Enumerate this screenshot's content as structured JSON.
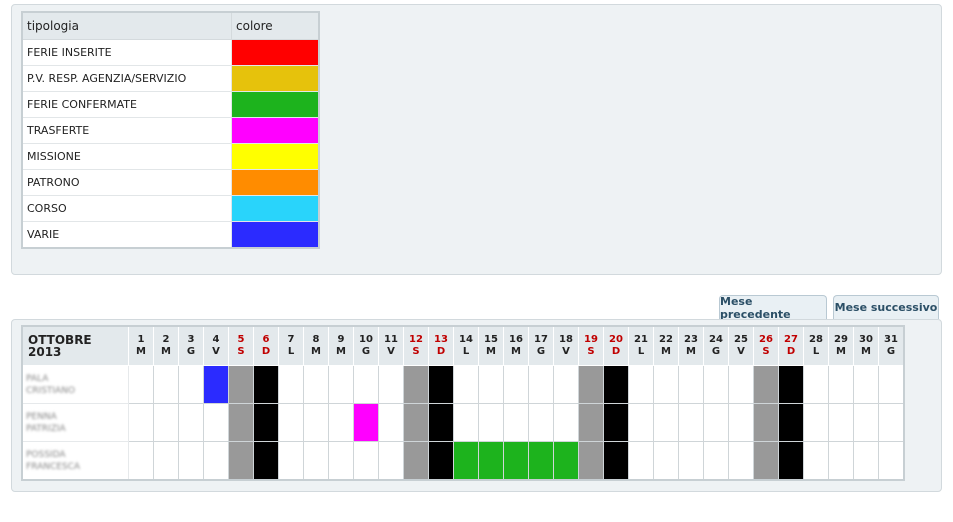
{
  "legend": {
    "headers": {
      "tipologia": "tipologia",
      "colore": "colore"
    },
    "rows": [
      {
        "label": "FERIE INSERITE",
        "color": "#ff0000"
      },
      {
        "label": "P.V. RESP. AGENZIA/SERVIZIO",
        "color": "#e6c20c"
      },
      {
        "label": "FERIE CONFERMATE",
        "color": "#1db31d"
      },
      {
        "label": "TRASFERTE",
        "color": "#ff00ff"
      },
      {
        "label": "MISSIONE",
        "color": "#ffff00"
      },
      {
        "label": "PATRONO",
        "color": "#ff8c00"
      },
      {
        "label": "CORSO",
        "color": "#29d4fb"
      },
      {
        "label": "VARIE",
        "color": "#2b2bff"
      }
    ]
  },
  "nav": {
    "prev_label": "Mese precedente",
    "next_label": "Mese successivo"
  },
  "calendar": {
    "month_title": "OTTOBRE 2013",
    "days": [
      {
        "n": "1",
        "l": "M"
      },
      {
        "n": "2",
        "l": "M"
      },
      {
        "n": "3",
        "l": "G"
      },
      {
        "n": "4",
        "l": "V"
      },
      {
        "n": "5",
        "l": "S"
      },
      {
        "n": "6",
        "l": "D"
      },
      {
        "n": "7",
        "l": "L"
      },
      {
        "n": "8",
        "l": "M"
      },
      {
        "n": "9",
        "l": "M"
      },
      {
        "n": "10",
        "l": "G"
      },
      {
        "n": "11",
        "l": "V"
      },
      {
        "n": "12",
        "l": "S"
      },
      {
        "n": "13",
        "l": "D"
      },
      {
        "n": "14",
        "l": "L"
      },
      {
        "n": "15",
        "l": "M"
      },
      {
        "n": "16",
        "l": "M"
      },
      {
        "n": "17",
        "l": "G"
      },
      {
        "n": "18",
        "l": "V"
      },
      {
        "n": "19",
        "l": "S"
      },
      {
        "n": "20",
        "l": "D"
      },
      {
        "n": "21",
        "l": "L"
      },
      {
        "n": "22",
        "l": "M"
      },
      {
        "n": "23",
        "l": "M"
      },
      {
        "n": "24",
        "l": "G"
      },
      {
        "n": "25",
        "l": "V"
      },
      {
        "n": "26",
        "l": "S"
      },
      {
        "n": "27",
        "l": "D"
      },
      {
        "n": "28",
        "l": "L"
      },
      {
        "n": "29",
        "l": "M"
      },
      {
        "n": "30",
        "l": "M"
      },
      {
        "n": "31",
        "l": "G"
      }
    ],
    "employees": [
      {
        "line1": "PALA",
        "line2": "CRISTIANO",
        "marks": {
          "4": "blue"
        }
      },
      {
        "line1": "PENNA",
        "line2": "PATRIZIA",
        "marks": {
          "10": "magenta"
        }
      },
      {
        "line1": "POSSIDA",
        "line2": "FRANCESCA",
        "marks": {
          "14": "green",
          "15": "green",
          "16": "green",
          "17": "green",
          "18": "green"
        }
      }
    ]
  }
}
